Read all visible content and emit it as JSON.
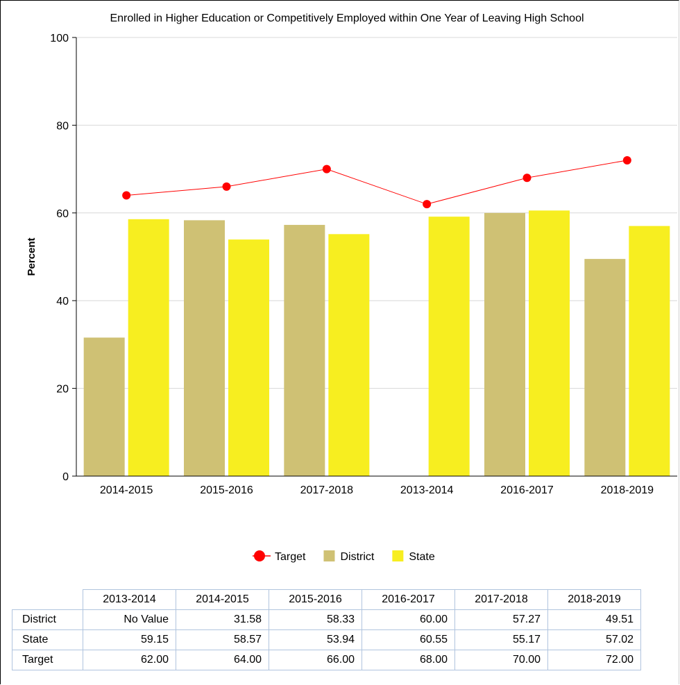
{
  "chart_data": {
    "type": "bar",
    "title": "Enrolled in Higher Education or Competitively Employed within One Year of Leaving High School",
    "xlabel": "",
    "ylabel": "Percent",
    "ylim": [
      0,
      100
    ],
    "yticks": [
      0,
      20,
      40,
      60,
      80,
      100
    ],
    "grid": true,
    "legend_placement": "bottom",
    "categories": [
      "2014-2015",
      "2015-2016",
      "2017-2018",
      "2013-2014",
      "2016-2017",
      "2018-2019"
    ],
    "series": [
      {
        "name": "District",
        "kind": "bar",
        "color": "#cfc174",
        "values": [
          31.58,
          58.33,
          57.27,
          null,
          60.0,
          49.51
        ]
      },
      {
        "name": "State",
        "kind": "bar",
        "color": "#f7ee20",
        "values": [
          58.57,
          53.94,
          55.17,
          59.15,
          60.55,
          57.02
        ]
      },
      {
        "name": "Target",
        "kind": "line",
        "color": "#ff0000",
        "values": [
          64,
          66,
          70,
          62,
          68,
          72
        ]
      }
    ],
    "legend_order": [
      "Target",
      "District",
      "State"
    ]
  },
  "table": {
    "columns": [
      "2013-2014",
      "2014-2015",
      "2015-2016",
      "2016-2017",
      "2017-2018",
      "2018-2019"
    ],
    "rows": [
      {
        "label": "District",
        "values": [
          "No Value",
          "31.58",
          "58.33",
          "60.00",
          "57.27",
          "49.51"
        ]
      },
      {
        "label": "State",
        "values": [
          "59.15",
          "58.57",
          "53.94",
          "60.55",
          "55.17",
          "57.02"
        ]
      },
      {
        "label": "Target",
        "values": [
          "62.00",
          "64.00",
          "66.00",
          "68.00",
          "70.00",
          "72.00"
        ]
      }
    ]
  }
}
